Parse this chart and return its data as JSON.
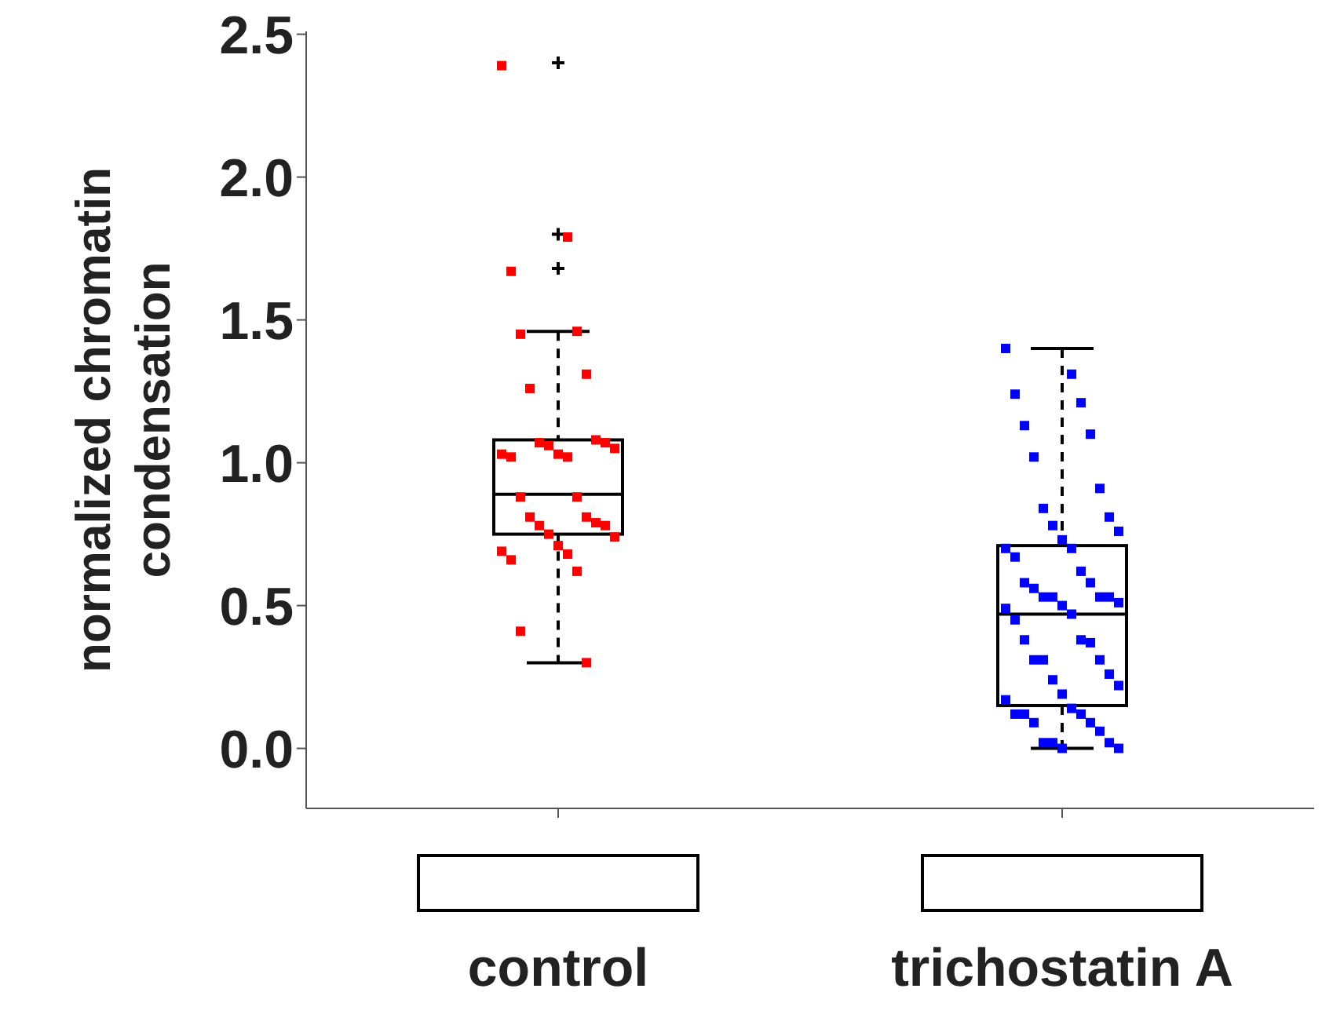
{
  "chart_data": {
    "type": "box",
    "categories": [
      "control",
      "trichostatin A"
    ],
    "ylabel": "normalized chromatin condensation",
    "ylim": [
      -0.21,
      2.51
    ],
    "yticks": [
      {
        "value": 0,
        "label": "0.0"
      },
      {
        "value": 0.5,
        "label": "0.5"
      },
      {
        "value": 1,
        "label": "1.0"
      },
      {
        "value": 1.5,
        "label": "1.5"
      },
      {
        "value": 2,
        "label": "2.0"
      },
      {
        "value": 2.5,
        "label": "2.5"
      }
    ],
    "marker": "square",
    "boxes": [
      {
        "low": 0.3,
        "q1": 0.75,
        "median": 0.89,
        "q3": 1.08,
        "high": 1.46,
        "outliers": [
          2.4,
          1.8,
          1.68
        ]
      },
      {
        "low": 0.0,
        "q1": 0.15,
        "median": 0.47,
        "q3": 0.71,
        "high": 1.4
      }
    ],
    "series": [
      {
        "type": "scatter",
        "color": "#ff0000",
        "x": [
          "control",
          "control",
          "control",
          "control",
          "control",
          "control",
          "control",
          "control",
          "control",
          "control",
          "control",
          "control",
          "control",
          "control",
          "control",
          "control",
          "control",
          "control",
          "control",
          "control",
          "control",
          "control",
          "control",
          "control",
          "control",
          "control",
          "control",
          "control",
          "control",
          "control",
          "control",
          "control"
        ],
        "values": [
          2.39,
          1.79,
          1.67,
          1.46,
          1.45,
          1.31,
          1.26,
          1.08,
          1.07,
          1.07,
          1.06,
          1.05,
          1.03,
          1.03,
          1.02,
          1.02,
          0.88,
          0.88,
          0.81,
          0.81,
          0.79,
          0.78,
          0.78,
          0.75,
          0.74,
          0.71,
          0.69,
          0.68,
          0.66,
          0.62,
          0.41,
          0.3
        ]
      },
      {
        "type": "scatter",
        "color": "#0000ff",
        "x": [
          "trichostatin A",
          "trichostatin A",
          "trichostatin A",
          "trichostatin A",
          "trichostatin A",
          "trichostatin A",
          "trichostatin A",
          "trichostatin A",
          "trichostatin A",
          "trichostatin A",
          "trichostatin A",
          "trichostatin A",
          "trichostatin A",
          "trichostatin A",
          "trichostatin A",
          "trichostatin A",
          "trichostatin A",
          "trichostatin A",
          "trichostatin A",
          "trichostatin A",
          "trichostatin A",
          "trichostatin A",
          "trichostatin A",
          "trichostatin A",
          "trichostatin A",
          "trichostatin A",
          "trichostatin A",
          "trichostatin A",
          "trichostatin A",
          "trichostatin A",
          "trichostatin A",
          "trichostatin A",
          "trichostatin A",
          "trichostatin A",
          "trichostatin A",
          "trichostatin A",
          "trichostatin A",
          "trichostatin A",
          "trichostatin A",
          "trichostatin A",
          "trichostatin A",
          "trichostatin A",
          "trichostatin A",
          "trichostatin A",
          "trichostatin A",
          "trichostatin A",
          "trichostatin A",
          "trichostatin A",
          "trichostatin A",
          "trichostatin A",
          "trichostatin A",
          "trichostatin A"
        ],
        "values": [
          1.4,
          1.31,
          1.24,
          1.21,
          1.13,
          1.1,
          1.02,
          0.91,
          0.84,
          0.81,
          0.78,
          0.76,
          0.73,
          0.7,
          0.7,
          0.67,
          0.62,
          0.58,
          0.58,
          0.56,
          0.53,
          0.53,
          0.53,
          0.53,
          0.51,
          0.5,
          0.49,
          0.47,
          0.45,
          0.38,
          0.38,
          0.37,
          0.31,
          0.31,
          0.31,
          0.26,
          0.24,
          0.22,
          0.19,
          0.17,
          0.14,
          0.12,
          0.12,
          0.12,
          0.09,
          0.09,
          0.06,
          0.02,
          0.02,
          0.02,
          0.0,
          0.0
        ]
      }
    ]
  }
}
